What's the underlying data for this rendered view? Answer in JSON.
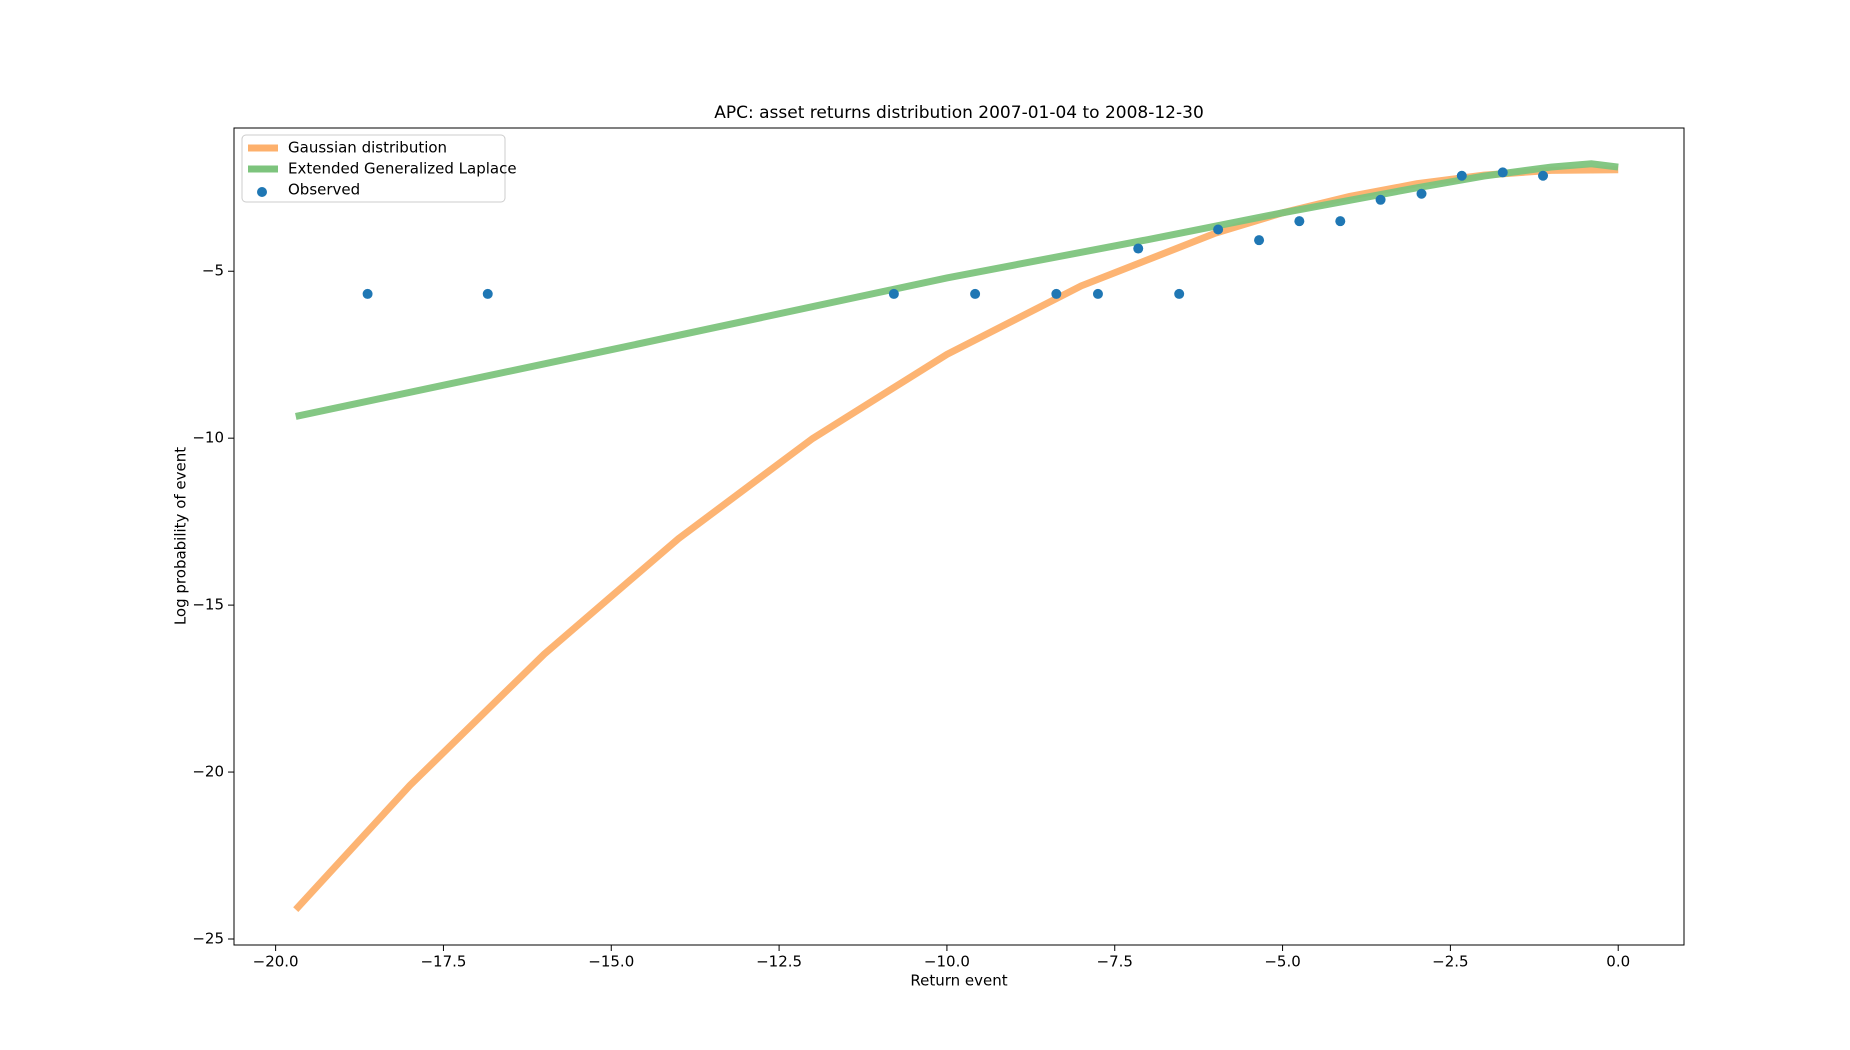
{
  "chart_data": {
    "type": "line",
    "title": "APC: asset returns distribution 2007-01-04 to 2008-12-30",
    "x_label": "Return event",
    "y_label": "Log probability of event",
    "xlim": [
      -20.62,
      0.98
    ],
    "ylim": [
      -25.18,
      -0.71
    ],
    "xticks": [
      {
        "value": -20,
        "label": "−20.0"
      },
      {
        "value": -17.5,
        "label": "−17.5"
      },
      {
        "value": -15,
        "label": "−15.0"
      },
      {
        "value": -12.5,
        "label": "−12.5"
      },
      {
        "value": -10,
        "label": "−10.0"
      },
      {
        "value": -7.5,
        "label": "−7.5"
      },
      {
        "value": -5,
        "label": "−5.0"
      },
      {
        "value": -2.5,
        "label": "−2.5"
      },
      {
        "value": 0,
        "label": "0.0"
      }
    ],
    "yticks": [
      {
        "value": -25,
        "label": "−25"
      },
      {
        "value": -20,
        "label": "−20"
      },
      {
        "value": -15,
        "label": "−15"
      },
      {
        "value": -10,
        "label": "−10"
      },
      {
        "value": -5,
        "label": "−5"
      }
    ],
    "legend": "upper left",
    "series": [
      {
        "name": "Gaussian distribution",
        "type": "line",
        "color": "#fdb06c",
        "x": [
          -19.7,
          -18,
          -16,
          -14,
          -12,
          -10,
          -8,
          -6,
          -5,
          -4,
          -3,
          -2,
          -1,
          0
        ],
        "values": [
          -24.12,
          -20.4,
          -16.47,
          -13.01,
          -10.01,
          -7.49,
          -5.44,
          -3.86,
          -3.25,
          -2.76,
          -2.38,
          -2.12,
          -1.98,
          -1.96
        ]
      },
      {
        "name": "Extended Generalized Laplace",
        "type": "line",
        "color": "#7dc47d",
        "x": [
          -19.7,
          -15,
          -10,
          -7,
          -5,
          -3,
          -2,
          -1,
          -0.4,
          0
        ],
        "values": [
          -9.35,
          -7.35,
          -5.2,
          -4.05,
          -3.25,
          -2.5,
          -2.15,
          -1.88,
          -1.78,
          -1.88
        ]
      },
      {
        "name": "Observed",
        "type": "scatter",
        "color": "#1f77b4",
        "x": [
          -18.63,
          -16.84,
          -10.79,
          -9.58,
          -8.37,
          -7.75,
          -7.15,
          -6.54,
          -5.96,
          -5.35,
          -4.75,
          -4.14,
          -3.54,
          -2.93,
          -2.33,
          -1.72,
          -1.12
        ],
        "values": [
          -5.68,
          -5.68,
          -5.68,
          -5.68,
          -5.68,
          -5.68,
          -4.32,
          -5.68,
          -3.75,
          -4.07,
          -3.5,
          -3.5,
          -2.86,
          -2.68,
          -2.14,
          -2.04,
          -2.14
        ]
      }
    ]
  }
}
